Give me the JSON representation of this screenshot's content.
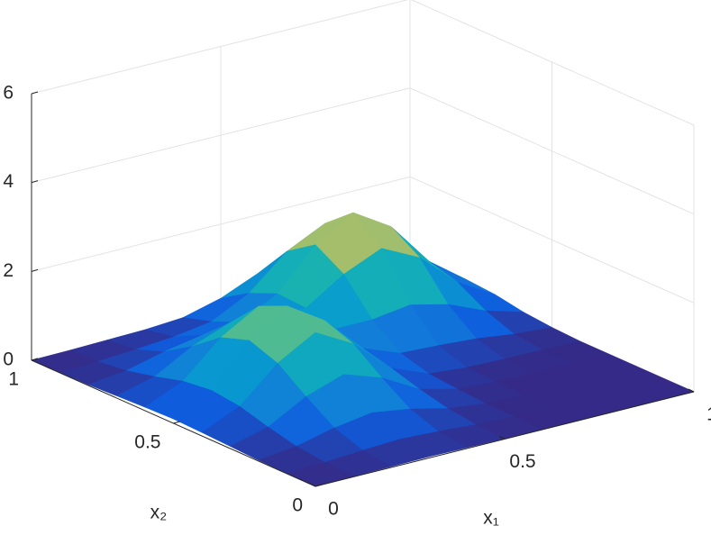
{
  "chart_data": {
    "type": "surface",
    "colormap": "parula",
    "grid": true,
    "xlabel": "x₁",
    "ylabel": "x₂",
    "xlim": [
      0,
      1
    ],
    "ylim": [
      0,
      1
    ],
    "zlim": [
      0,
      6
    ],
    "xticks": [
      0,
      0.5,
      1
    ],
    "yticks": [
      0,
      0.5,
      1
    ],
    "zticks": [
      0,
      2,
      4,
      6
    ],
    "x": [
      0,
      0.1,
      0.2,
      0.3,
      0.4,
      0.5,
      0.6,
      0.7,
      0.8,
      0.9,
      1
    ],
    "y": [
      0,
      0.1,
      0.2,
      0.3,
      0.4,
      0.5,
      0.6,
      0.7,
      0.8,
      0.9,
      1
    ],
    "z": [
      [
        0,
        0.01,
        0.02,
        0.03,
        0.02,
        0.01,
        0,
        0,
        0,
        0,
        0
      ],
      [
        0.01,
        0.04,
        0.1,
        0.14,
        0.1,
        0.04,
        0.01,
        0,
        0,
        0,
        0
      ],
      [
        0.02,
        0.12,
        0.32,
        0.45,
        0.32,
        0.12,
        0.02,
        0,
        0,
        0,
        0
      ],
      [
        0.05,
        0.27,
        0.74,
        1.03,
        0.74,
        0.27,
        0.06,
        0.01,
        0,
        0,
        0
      ],
      [
        0.08,
        0.45,
        1.21,
        1.69,
        1.22,
        0.46,
        0.12,
        0.05,
        0.03,
        0.02,
        0
      ],
      [
        0.1,
        0.53,
        1.44,
        2.0,
        1.46,
        0.62,
        0.3,
        0.26,
        0.2,
        0.09,
        0.03
      ],
      [
        0.08,
        0.45,
        1.22,
        1.71,
        1.31,
        0.77,
        0.77,
        0.89,
        0.69,
        0.33,
        0.09
      ],
      [
        0.05,
        0.27,
        0.74,
        1.06,
        0.93,
        0.96,
        1.51,
        1.88,
        1.46,
        0.69,
        0.2
      ],
      [
        0.02,
        0.12,
        0.33,
        0.49,
        0.57,
        1.0,
        1.89,
        2.4,
        1.87,
        0.88,
        0.25
      ],
      [
        0.01,
        0.04,
        0.1,
        0.17,
        0.3,
        0.73,
        1.46,
        1.87,
        1.46,
        0.69,
        0.2
      ],
      [
        0,
        0.01,
        0.03,
        0.05,
        0.11,
        0.33,
        0.69,
        0.88,
        0.69,
        0.33,
        0.09
      ]
    ]
  }
}
